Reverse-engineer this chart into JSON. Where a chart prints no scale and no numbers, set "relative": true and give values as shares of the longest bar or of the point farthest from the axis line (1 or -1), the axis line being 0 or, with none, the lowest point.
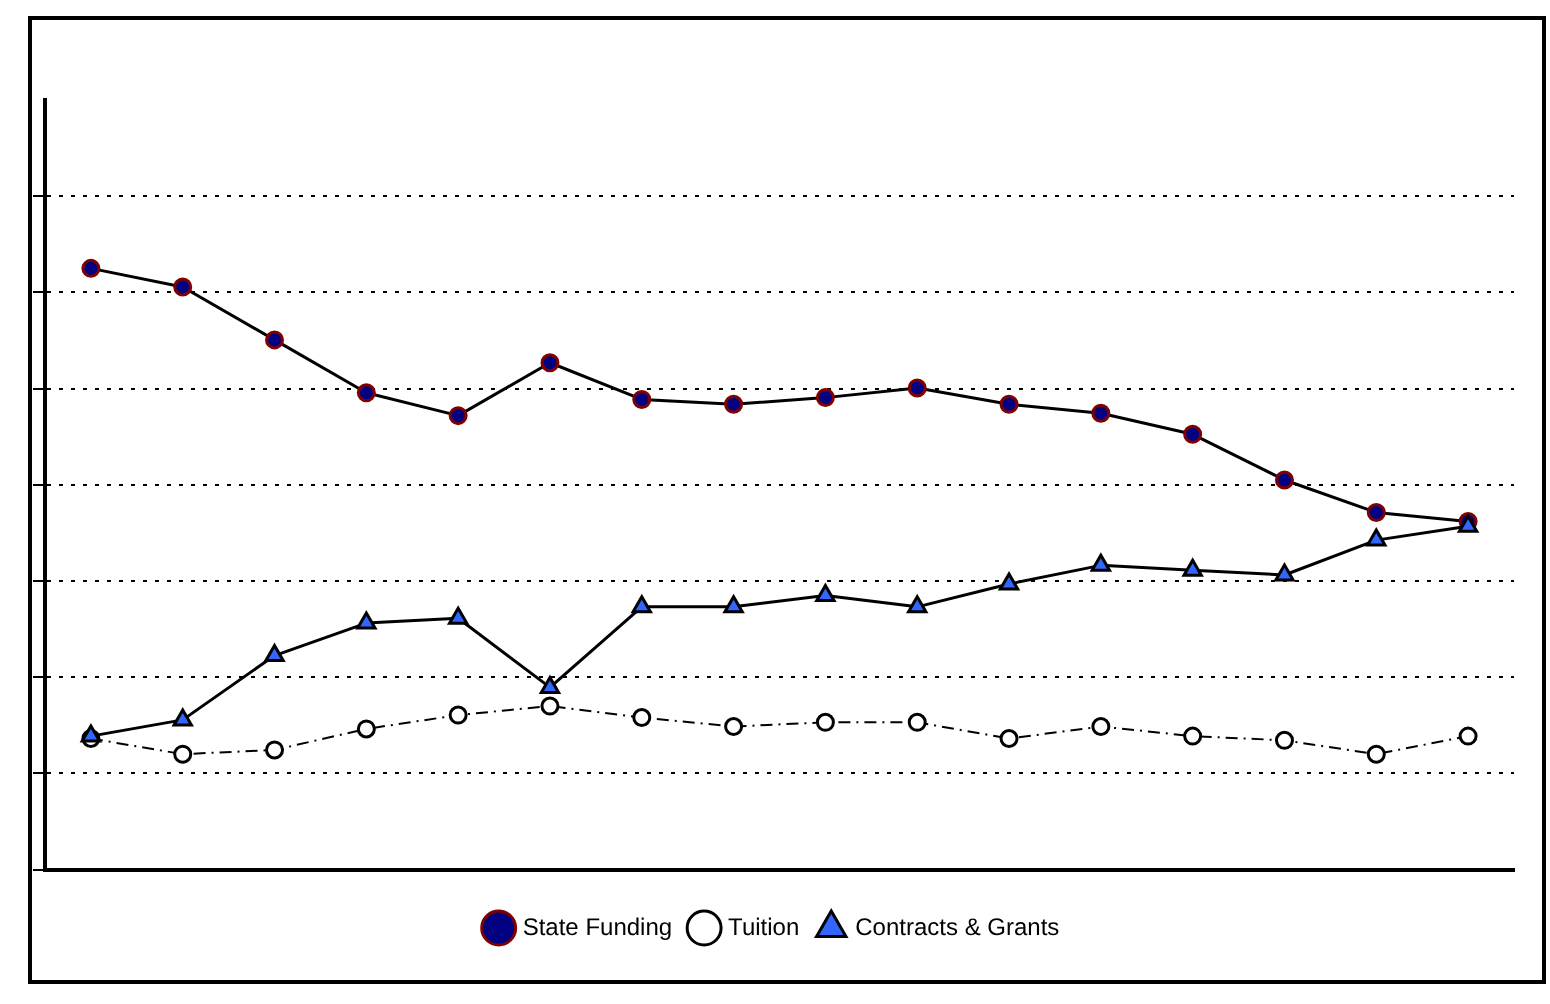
{
  "chart_data": {
    "type": "line",
    "relative": true,
    "grid": "y",
    "legend": "bottom",
    "categories": [
      null,
      null,
      null,
      null,
      null,
      null,
      null,
      null,
      null,
      null,
      null,
      null,
      null,
      null,
      null,
      null
    ],
    "series": [
      {
        "name": "State Funding",
        "color": "#800000",
        "marker": "circle",
        "line_style": "solid",
        "values": [
          1,
          0.969,
          0.881,
          0.793,
          0.755,
          0.843,
          0.782,
          0.774,
          0.785,
          0.801,
          0.774,
          0.759,
          0.724,
          0.648,
          0.594,
          0.579
        ]
      },
      {
        "name": "Tuition",
        "color": "#000000",
        "marker": "circle",
        "line_style": "dashed",
        "values": [
          0.218,
          0.192,
          0.199,
          0.234,
          0.257,
          0.272,
          0.253,
          0.238,
          0.245,
          0.245,
          0.218,
          0.238,
          0.222,
          0.215,
          0.192,
          0.222
        ]
      },
      {
        "name": "Contracts & Grants",
        "color": "#3366ff",
        "marker": "triangle",
        "line_style": "solid",
        "values": [
          0.222,
          0.249,
          0.356,
          0.41,
          0.418,
          0.303,
          0.437,
          0.437,
          0.456,
          0.437,
          0.475,
          0.506,
          0.498,
          0.49,
          0.548,
          0.571
        ]
      }
    ]
  }
}
